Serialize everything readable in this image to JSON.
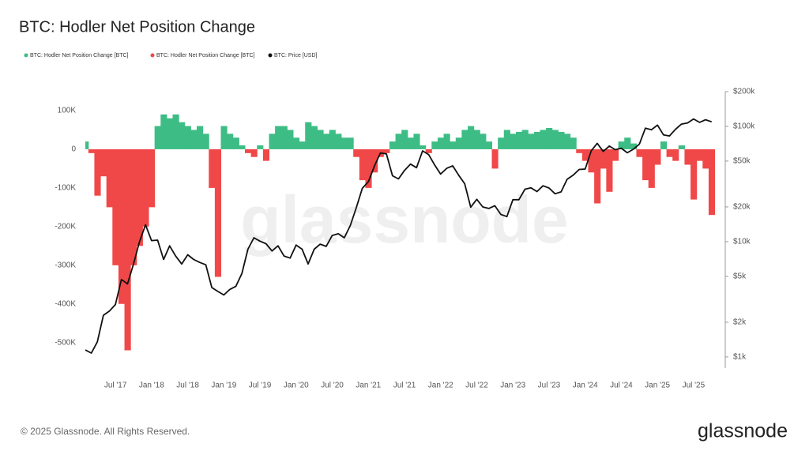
{
  "chart_data": {
    "type": "bar-line",
    "title": "BTC: Hodler Net Position Change",
    "watermark": "glassnode",
    "footer": "© 2025 Glassnode. All Rights Reserved.",
    "logo": "glassnode",
    "x": [
      "2017-02",
      "2017-03",
      "2017-04",
      "2017-05",
      "2017-06",
      "2017-07",
      "2017-08",
      "2017-09",
      "2017-10",
      "2017-11",
      "2017-12",
      "2018-01",
      "2018-02",
      "2018-03",
      "2018-04",
      "2018-05",
      "2018-06",
      "2018-07",
      "2018-08",
      "2018-09",
      "2018-10",
      "2018-11",
      "2018-12",
      "2019-01",
      "2019-02",
      "2019-03",
      "2019-04",
      "2019-05",
      "2019-06",
      "2019-07",
      "2019-08",
      "2019-09",
      "2019-10",
      "2019-11",
      "2019-12",
      "2020-01",
      "2020-02",
      "2020-03",
      "2020-04",
      "2020-05",
      "2020-06",
      "2020-07",
      "2020-08",
      "2020-09",
      "2020-10",
      "2020-11",
      "2020-12",
      "2021-01",
      "2021-02",
      "2021-03",
      "2021-04",
      "2021-05",
      "2021-06",
      "2021-07",
      "2021-08",
      "2021-09",
      "2021-10",
      "2021-11",
      "2021-12",
      "2022-01",
      "2022-02",
      "2022-03",
      "2022-04",
      "2022-05",
      "2022-06",
      "2022-07",
      "2022-08",
      "2022-09",
      "2022-10",
      "2022-11",
      "2022-12",
      "2023-01",
      "2023-02",
      "2023-03",
      "2023-04",
      "2023-05",
      "2023-06",
      "2023-07",
      "2023-08",
      "2023-09",
      "2023-10",
      "2023-11",
      "2023-12",
      "2024-01",
      "2024-02",
      "2024-03",
      "2024-04",
      "2024-05",
      "2024-06",
      "2024-07",
      "2024-08",
      "2024-09",
      "2024-10",
      "2024-11",
      "2024-12",
      "2025-01",
      "2025-02",
      "2025-03",
      "2025-04",
      "2025-05",
      "2025-06",
      "2025-07",
      "2025-08",
      "2025-09",
      "2025-10"
    ],
    "xlim": [
      "2017-02",
      "2025-12"
    ],
    "xticks": [
      {
        "value": "2017-07",
        "label": "Jul '17"
      },
      {
        "value": "2018-01",
        "label": "Jan '18"
      },
      {
        "value": "2018-07",
        "label": "Jul '18"
      },
      {
        "value": "2019-01",
        "label": "Jan '19"
      },
      {
        "value": "2019-07",
        "label": "Jul '19"
      },
      {
        "value": "2020-01",
        "label": "Jan '20"
      },
      {
        "value": "2020-07",
        "label": "Jul '20"
      },
      {
        "value": "2021-01",
        "label": "Jan '21"
      },
      {
        "value": "2021-07",
        "label": "Jul '21"
      },
      {
        "value": "2022-01",
        "label": "Jan '22"
      },
      {
        "value": "2022-07",
        "label": "Jul '22"
      },
      {
        "value": "2023-01",
        "label": "Jan '23"
      },
      {
        "value": "2023-07",
        "label": "Jul '23"
      },
      {
        "value": "2024-01",
        "label": "Jan '24"
      },
      {
        "value": "2024-07",
        "label": "Jul '24"
      },
      {
        "value": "2025-01",
        "label": "Jan '25"
      },
      {
        "value": "2025-07",
        "label": "Jul '25"
      }
    ],
    "ylim": [
      -566000,
      149000
    ],
    "yticks": [
      {
        "value": 100000,
        "label": "100K"
      },
      0,
      {
        "value": -100000,
        "label": "-100K"
      },
      {
        "value": -200000,
        "label": "-200K"
      },
      {
        "value": -300000,
        "label": "-300K"
      },
      {
        "value": -400000,
        "label": "-400K"
      },
      {
        "value": -500000,
        "label": "-500K"
      }
    ],
    "y2lim": [
      800,
      200000
    ],
    "y2log": true,
    "y2ticks": [
      {
        "value": 200000,
        "label": "$200k"
      },
      {
        "value": 100000,
        "label": "$100k"
      },
      {
        "value": 50000,
        "label": "$50k"
      },
      {
        "value": 20000,
        "label": "$20k"
      },
      {
        "value": 10000,
        "label": "$10k"
      },
      {
        "value": 5000,
        "label": "$5k"
      },
      {
        "value": 2000,
        "label": "$2k"
      },
      {
        "value": 1000,
        "label": "$1k"
      }
    ],
    "series": [
      {
        "name": "BTC: Hodler Net Position Change [BTC]",
        "color": "#3dbd85",
        "values": [
          20000,
          null,
          null,
          null,
          null,
          null,
          null,
          null,
          null,
          null,
          null,
          null,
          60000,
          90000,
          80000,
          90000,
          70000,
          60000,
          50000,
          60000,
          40000,
          null,
          null,
          60000,
          40000,
          30000,
          10000,
          null,
          null,
          10000,
          null,
          40000,
          60000,
          60000,
          50000,
          30000,
          20000,
          70000,
          60000,
          50000,
          40000,
          50000,
          40000,
          30000,
          30000,
          null,
          null,
          null,
          null,
          null,
          null,
          20000,
          40000,
          50000,
          30000,
          40000,
          10000,
          null,
          20000,
          30000,
          40000,
          20000,
          30000,
          50000,
          60000,
          50000,
          40000,
          20000,
          null,
          30000,
          50000,
          40000,
          45000,
          50000,
          40000,
          45000,
          50000,
          55000,
          50000,
          45000,
          40000,
          30000,
          null,
          null,
          null,
          null,
          null,
          null,
          null,
          20000,
          30000,
          15000,
          null,
          null,
          null,
          null,
          20000,
          null,
          null,
          10000,
          null,
          null,
          null,
          null,
          null
        ]
      },
      {
        "name": "BTC: Hodler Net Position Change [BTC]",
        "color": "#f04848",
        "values": [
          null,
          -10000,
          -120000,
          -70000,
          -150000,
          -300000,
          -400000,
          -520000,
          -300000,
          -250000,
          -200000,
          -150000,
          null,
          null,
          null,
          null,
          null,
          null,
          null,
          null,
          null,
          -100000,
          -330000,
          null,
          null,
          null,
          null,
          -10000,
          -20000,
          null,
          -30000,
          null,
          null,
          null,
          null,
          null,
          null,
          null,
          null,
          null,
          null,
          null,
          null,
          null,
          null,
          -20000,
          -80000,
          -100000,
          -60000,
          -20000,
          -10000,
          null,
          null,
          null,
          null,
          null,
          null,
          -10000,
          null,
          null,
          null,
          null,
          null,
          null,
          null,
          null,
          null,
          null,
          -50000,
          null,
          null,
          null,
          null,
          null,
          null,
          null,
          null,
          null,
          null,
          null,
          null,
          null,
          -10000,
          -30000,
          -60000,
          -140000,
          -50000,
          -110000,
          -30000,
          null,
          null,
          null,
          -20000,
          -80000,
          -100000,
          -40000,
          null,
          -20000,
          -30000,
          null,
          -40000,
          -130000,
          -30000,
          -50000,
          -170000
        ]
      },
      {
        "name": "BTC: Price [USD]",
        "color": "#111111",
        "axis": "y2",
        "values": [
          1150,
          1080,
          1350,
          2300,
          2500,
          2850,
          4700,
          4300,
          6400,
          10000,
          14000,
          10200,
          10300,
          7000,
          9200,
          7500,
          6400,
          7700,
          7000,
          6600,
          6300,
          4000,
          3700,
          3450,
          3850,
          4100,
          5300,
          8600,
          10800,
          10100,
          9600,
          8300,
          9200,
          7500,
          7200,
          9350,
          8600,
          6400,
          8600,
          9500,
          9100,
          11300,
          11700,
          10800,
          13800,
          19700,
          29000,
          33100,
          45200,
          58800,
          57700,
          37300,
          35000,
          41500,
          47100,
          43800,
          61300,
          57000,
          46300,
          38500,
          43200,
          45500,
          37700,
          31800,
          19900,
          23300,
          20000,
          19400,
          20500,
          17200,
          16500,
          23100,
          23100,
          28500,
          29300,
          27200,
          30500,
          29200,
          26000,
          27000,
          34700,
          37700,
          42300,
          42600,
          61200,
          71300,
          60600,
          67500,
          62700,
          64600,
          59000,
          63300,
          70200,
          96400,
          93400,
          102400,
          84400,
          82500,
          94200,
          104600,
          107100,
          115800,
          108200,
          114000,
          109500
        ]
      }
    ]
  }
}
